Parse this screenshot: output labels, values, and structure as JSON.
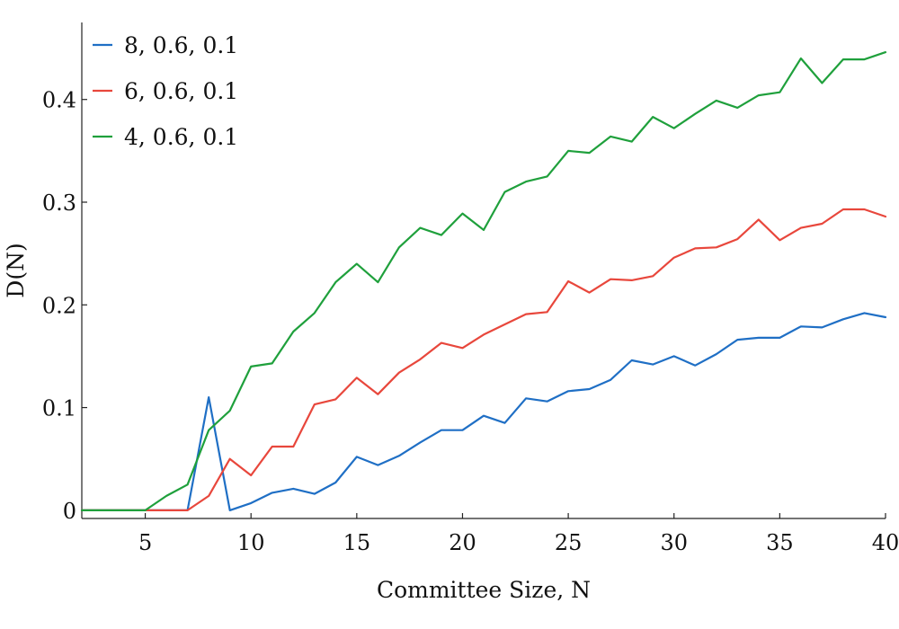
{
  "chart_data": {
    "type": "line",
    "title": "",
    "xlabel": "Committee Size, N",
    "ylabel": "D(N)",
    "xlim": [
      2,
      40
    ],
    "ylim": [
      -0.008,
      0.475
    ],
    "xticks": [
      5,
      10,
      15,
      20,
      25,
      30,
      35,
      40
    ],
    "xtick_labels": [
      "5",
      "10",
      "15",
      "20",
      "25",
      "30",
      "35",
      "40"
    ],
    "yticks": [
      0,
      0.1,
      0.2,
      0.3,
      0.4
    ],
    "ytick_labels": [
      "0",
      "0.1",
      "0.2",
      "0.3",
      "0.4"
    ],
    "grid": false,
    "legend_position": "top-left",
    "series": [
      {
        "name": "8, 0.6, 0.1",
        "color": "#1f6fc5",
        "x": [
          2,
          3,
          4,
          5,
          6,
          7,
          8,
          9,
          10,
          11,
          12,
          13,
          14,
          15,
          16,
          17,
          18,
          19,
          20,
          21,
          22,
          23,
          24,
          25,
          26,
          27,
          28,
          29,
          30,
          31,
          32,
          33,
          34,
          35,
          36,
          37,
          38,
          39,
          40
        ],
        "y": [
          0,
          0,
          0,
          0,
          0,
          0,
          0.11,
          0,
          0.007,
          0.017,
          0.021,
          0.016,
          0.027,
          0.052,
          0.044,
          0.053,
          0.066,
          0.078,
          0.078,
          0.092,
          0.085,
          0.109,
          0.106,
          0.116,
          0.118,
          0.127,
          0.146,
          0.142,
          0.15,
          0.141,
          0.152,
          0.166,
          0.168,
          0.168,
          0.179,
          0.178,
          0.186,
          0.192,
          0.188
        ]
      },
      {
        "name": "6, 0.6, 0.1",
        "color": "#e8473c",
        "x": [
          2,
          3,
          4,
          5,
          6,
          7,
          8,
          9,
          10,
          11,
          12,
          13,
          14,
          15,
          16,
          17,
          18,
          19,
          20,
          21,
          22,
          23,
          24,
          25,
          26,
          27,
          28,
          29,
          30,
          31,
          32,
          33,
          34,
          35,
          36,
          37,
          38,
          39,
          40
        ],
        "y": [
          0,
          0,
          0,
          0,
          0,
          0,
          0.014,
          0.05,
          0.034,
          0.062,
          0.062,
          0.103,
          0.108,
          0.129,
          0.113,
          0.134,
          0.147,
          0.163,
          0.158,
          0.171,
          0.181,
          0.191,
          0.193,
          0.223,
          0.212,
          0.225,
          0.224,
          0.228,
          0.246,
          0.255,
          0.256,
          0.264,
          0.283,
          0.263,
          0.275,
          0.279,
          0.293,
          0.293,
          0.286
        ]
      },
      {
        "name": "4, 0.6, 0.1",
        "color": "#1fa03c",
        "x": [
          2,
          3,
          4,
          5,
          6,
          7,
          8,
          9,
          10,
          11,
          12,
          13,
          14,
          15,
          16,
          17,
          18,
          19,
          20,
          21,
          22,
          23,
          24,
          25,
          26,
          27,
          28,
          29,
          30,
          31,
          32,
          33,
          34,
          35,
          36,
          37,
          38,
          39,
          40
        ],
        "y": [
          0,
          0,
          0,
          0,
          0.014,
          0.025,
          0.078,
          0.097,
          0.14,
          0.143,
          0.174,
          0.192,
          0.222,
          0.24,
          0.222,
          0.256,
          0.275,
          0.268,
          0.289,
          0.273,
          0.31,
          0.32,
          0.325,
          0.35,
          0.348,
          0.364,
          0.359,
          0.383,
          0.372,
          0.386,
          0.399,
          0.392,
          0.404,
          0.407,
          0.44,
          0.416,
          0.439,
          0.439,
          0.446
        ]
      }
    ]
  }
}
